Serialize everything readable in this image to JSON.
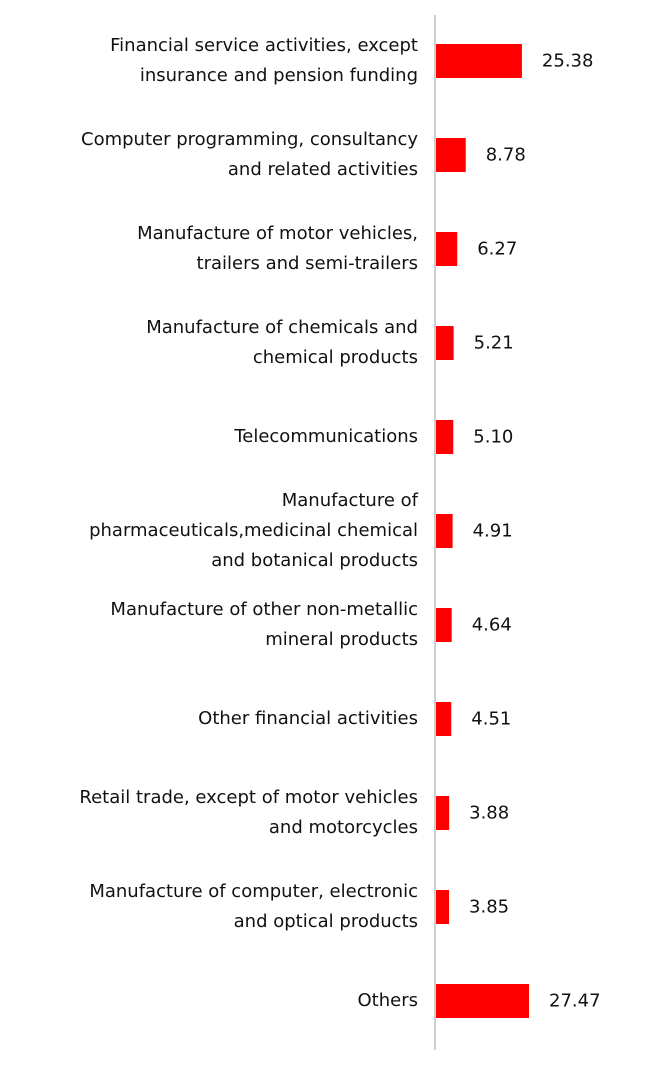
{
  "chart_data": {
    "type": "barh",
    "color": "#ff0000",
    "categories": [
      "Financial service activities, except\ninsurance and pension funding",
      "Computer programming, consultancy\nand related activities",
      "Manufacture of motor vehicles,\ntrailers and semi-trailers",
      "Manufacture of chemicals and\nchemical products",
      "Telecommunications",
      "Manufacture of\npharmaceuticals,medicinal chemical\nand botanical products",
      "Manufacture of other non-metallic\nmineral products",
      "Other financial activities",
      "Retail trade, except of motor vehicles\nand motorcycles",
      "Manufacture of computer, electronic\nand optical products",
      "Others"
    ],
    "values": [
      25.38,
      8.78,
      6.27,
      5.21,
      5.1,
      4.91,
      4.64,
      4.51,
      3.88,
      3.85,
      27.47
    ],
    "value_labels": [
      "25.38",
      "8.78",
      "6.27",
      "5.21",
      "5.10",
      "4.91",
      "4.64",
      "4.51",
      "3.88",
      "3.85",
      "27.47"
    ]
  }
}
